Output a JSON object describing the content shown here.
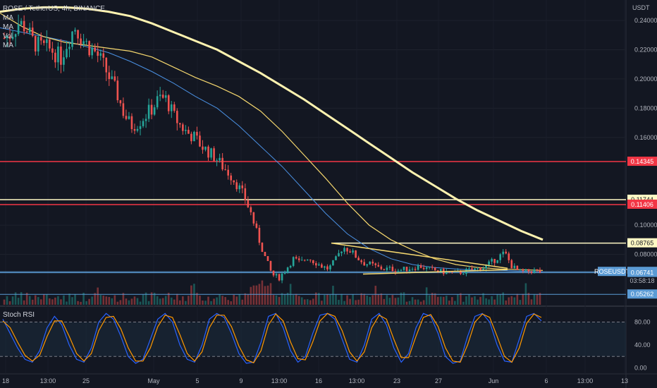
{
  "header": {
    "symbol_title": "ROSE / TetherUS, 4h, BINANCE",
    "indicators": [
      "MA",
      "MA",
      "Vol",
      "MA"
    ],
    "unit": "USDT",
    "rsi_title": "Stoch RSI"
  },
  "colors": {
    "background": "#131722",
    "up": "#26a69a",
    "down": "#ef5350",
    "ma_long": "#fff3b0",
    "ma_mid": "#f5d76e",
    "ma_short": "#4a90e2",
    "hline_red": "#f23645",
    "hline_yellow": "#fff9c4",
    "hline_blue": "#5b9bd5",
    "rsi_k": "#2962ff",
    "rsi_d": "#ff9800"
  },
  "chart_data": [
    {
      "type": "candlestick",
      "title": "ROSE / TetherUS, 4h, BINANCE",
      "ylabel": "USDT",
      "ylim": [
        0.0455,
        0.254
      ],
      "y_ticks": [
        "0.24000",
        "0.22000",
        "0.20000",
        "0.18000",
        "0.16000",
        "0.10000",
        "0.08000"
      ],
      "x_ticks": [
        "18",
        "13:00",
        "25",
        "May",
        "5",
        "9",
        "13:00",
        "16",
        "13:00",
        "23",
        "27",
        "Jun",
        "6",
        "13:00",
        "13"
      ],
      "close_path": [
        0.228,
        0.231,
        0.238,
        0.236,
        0.226,
        0.222,
        0.221,
        0.219,
        0.214,
        0.226,
        0.236,
        0.228,
        0.222,
        0.218,
        0.21,
        0.2,
        0.19,
        0.176,
        0.168,
        0.17,
        0.175,
        0.18,
        0.187,
        0.186,
        0.175,
        0.168,
        0.163,
        0.16,
        0.154,
        0.15,
        0.146,
        0.14,
        0.135,
        0.128,
        0.12,
        0.108,
        0.092,
        0.078,
        0.066,
        0.064,
        0.07,
        0.077,
        0.074,
        0.078,
        0.075,
        0.072,
        0.07,
        0.076,
        0.085,
        0.083,
        0.078,
        0.074,
        0.073,
        0.071,
        0.07,
        0.07,
        0.069,
        0.07,
        0.071,
        0.072,
        0.07,
        0.069,
        0.068,
        0.068,
        0.067,
        0.068,
        0.069,
        0.07,
        0.071,
        0.074,
        0.078,
        0.081,
        0.072,
        0.068,
        0.068,
        0.069,
        0.0681
      ],
      "horizontal_levels": [
        {
          "value": 0.14345,
          "label": "0.14345",
          "color": "red"
        },
        {
          "value": 0.11744,
          "label": "0.11744",
          "color": "yellow"
        },
        {
          "value": 0.11406,
          "label": "0.11406",
          "color": "red"
        },
        {
          "value": 0.08765,
          "label": "0.08765",
          "color": "yellow"
        },
        {
          "value": 0.06809,
          "label": "0.06809",
          "color": "blue",
          "symbol": "ROSEUSDT",
          "countdown": "03:58:18"
        },
        {
          "value": 0.06741,
          "label": "0.06741",
          "color": "blue"
        },
        {
          "value": 0.05262,
          "label": "0.05262",
          "color": "blue"
        }
      ],
      "ma_long": [
        0.246,
        0.248,
        0.249,
        0.249,
        0.248,
        0.246,
        0.243,
        0.238,
        0.232,
        0.226,
        0.22,
        0.212,
        0.204,
        0.195,
        0.186,
        0.176,
        0.166,
        0.156,
        0.146,
        0.136,
        0.127,
        0.118,
        0.11,
        0.103,
        0.096,
        0.09
      ],
      "ma_mid": [
        0.245,
        0.236,
        0.229,
        0.225,
        0.223,
        0.221,
        0.219,
        0.215,
        0.208,
        0.201,
        0.195,
        0.188,
        0.178,
        0.164,
        0.148,
        0.132,
        0.115,
        0.1,
        0.09,
        0.083,
        0.077,
        0.073,
        0.071,
        0.07,
        0.0695,
        0.069
      ],
      "ma_short": [
        0.235,
        0.232,
        0.229,
        0.226,
        0.222,
        0.218,
        0.212,
        0.205,
        0.197,
        0.188,
        0.18,
        0.168,
        0.154,
        0.14,
        0.124,
        0.108,
        0.094,
        0.084,
        0.077,
        0.073,
        0.071,
        0.07,
        0.069,
        0.069,
        0.0685,
        0.068
      ]
    },
    {
      "type": "line",
      "title": "Stoch RSI",
      "ylim": [
        -8,
        104
      ],
      "y_ticks": [
        "80.00",
        "40.00",
        "0.00"
      ],
      "bands": [
        20,
        80
      ],
      "series": [
        {
          "values": [
            85,
            60,
            35,
            15,
            10,
            30,
            70,
            90,
            75,
            40,
            15,
            10,
            35,
            80,
            95,
            85,
            55,
            20,
            8,
            15,
            50,
            85,
            95,
            80,
            40,
            15,
            10,
            40,
            85,
            95,
            88,
            60,
            25,
            8,
            10,
            45,
            90,
            95,
            70,
            30,
            10,
            20,
            60,
            92,
            95,
            85,
            50,
            15,
            10,
            40,
            85,
            95,
            75,
            35,
            10,
            25,
            70,
            95,
            90,
            60,
            20,
            8,
            12,
            55,
            90,
            95,
            80,
            40,
            12,
            10,
            50,
            90,
            95,
            82
          ]
        },
        {
          "values": [
            82,
            70,
            45,
            22,
            12,
            22,
            55,
            82,
            82,
            55,
            25,
            12,
            25,
            65,
            88,
            90,
            68,
            35,
            12,
            12,
            35,
            72,
            92,
            88,
            58,
            25,
            12,
            28,
            70,
            92,
            92,
            72,
            38,
            14,
            9,
            30,
            75,
            94,
            82,
            45,
            16,
            14,
            45,
            82,
            95,
            90,
            65,
            28,
            12,
            28,
            70,
            92,
            85,
            50,
            18,
            18,
            55,
            88,
            93,
            72,
            35,
            12,
            10,
            40,
            80,
            94,
            88,
            55,
            20,
            10,
            35,
            78,
            94,
            88
          ]
        }
      ]
    }
  ]
}
